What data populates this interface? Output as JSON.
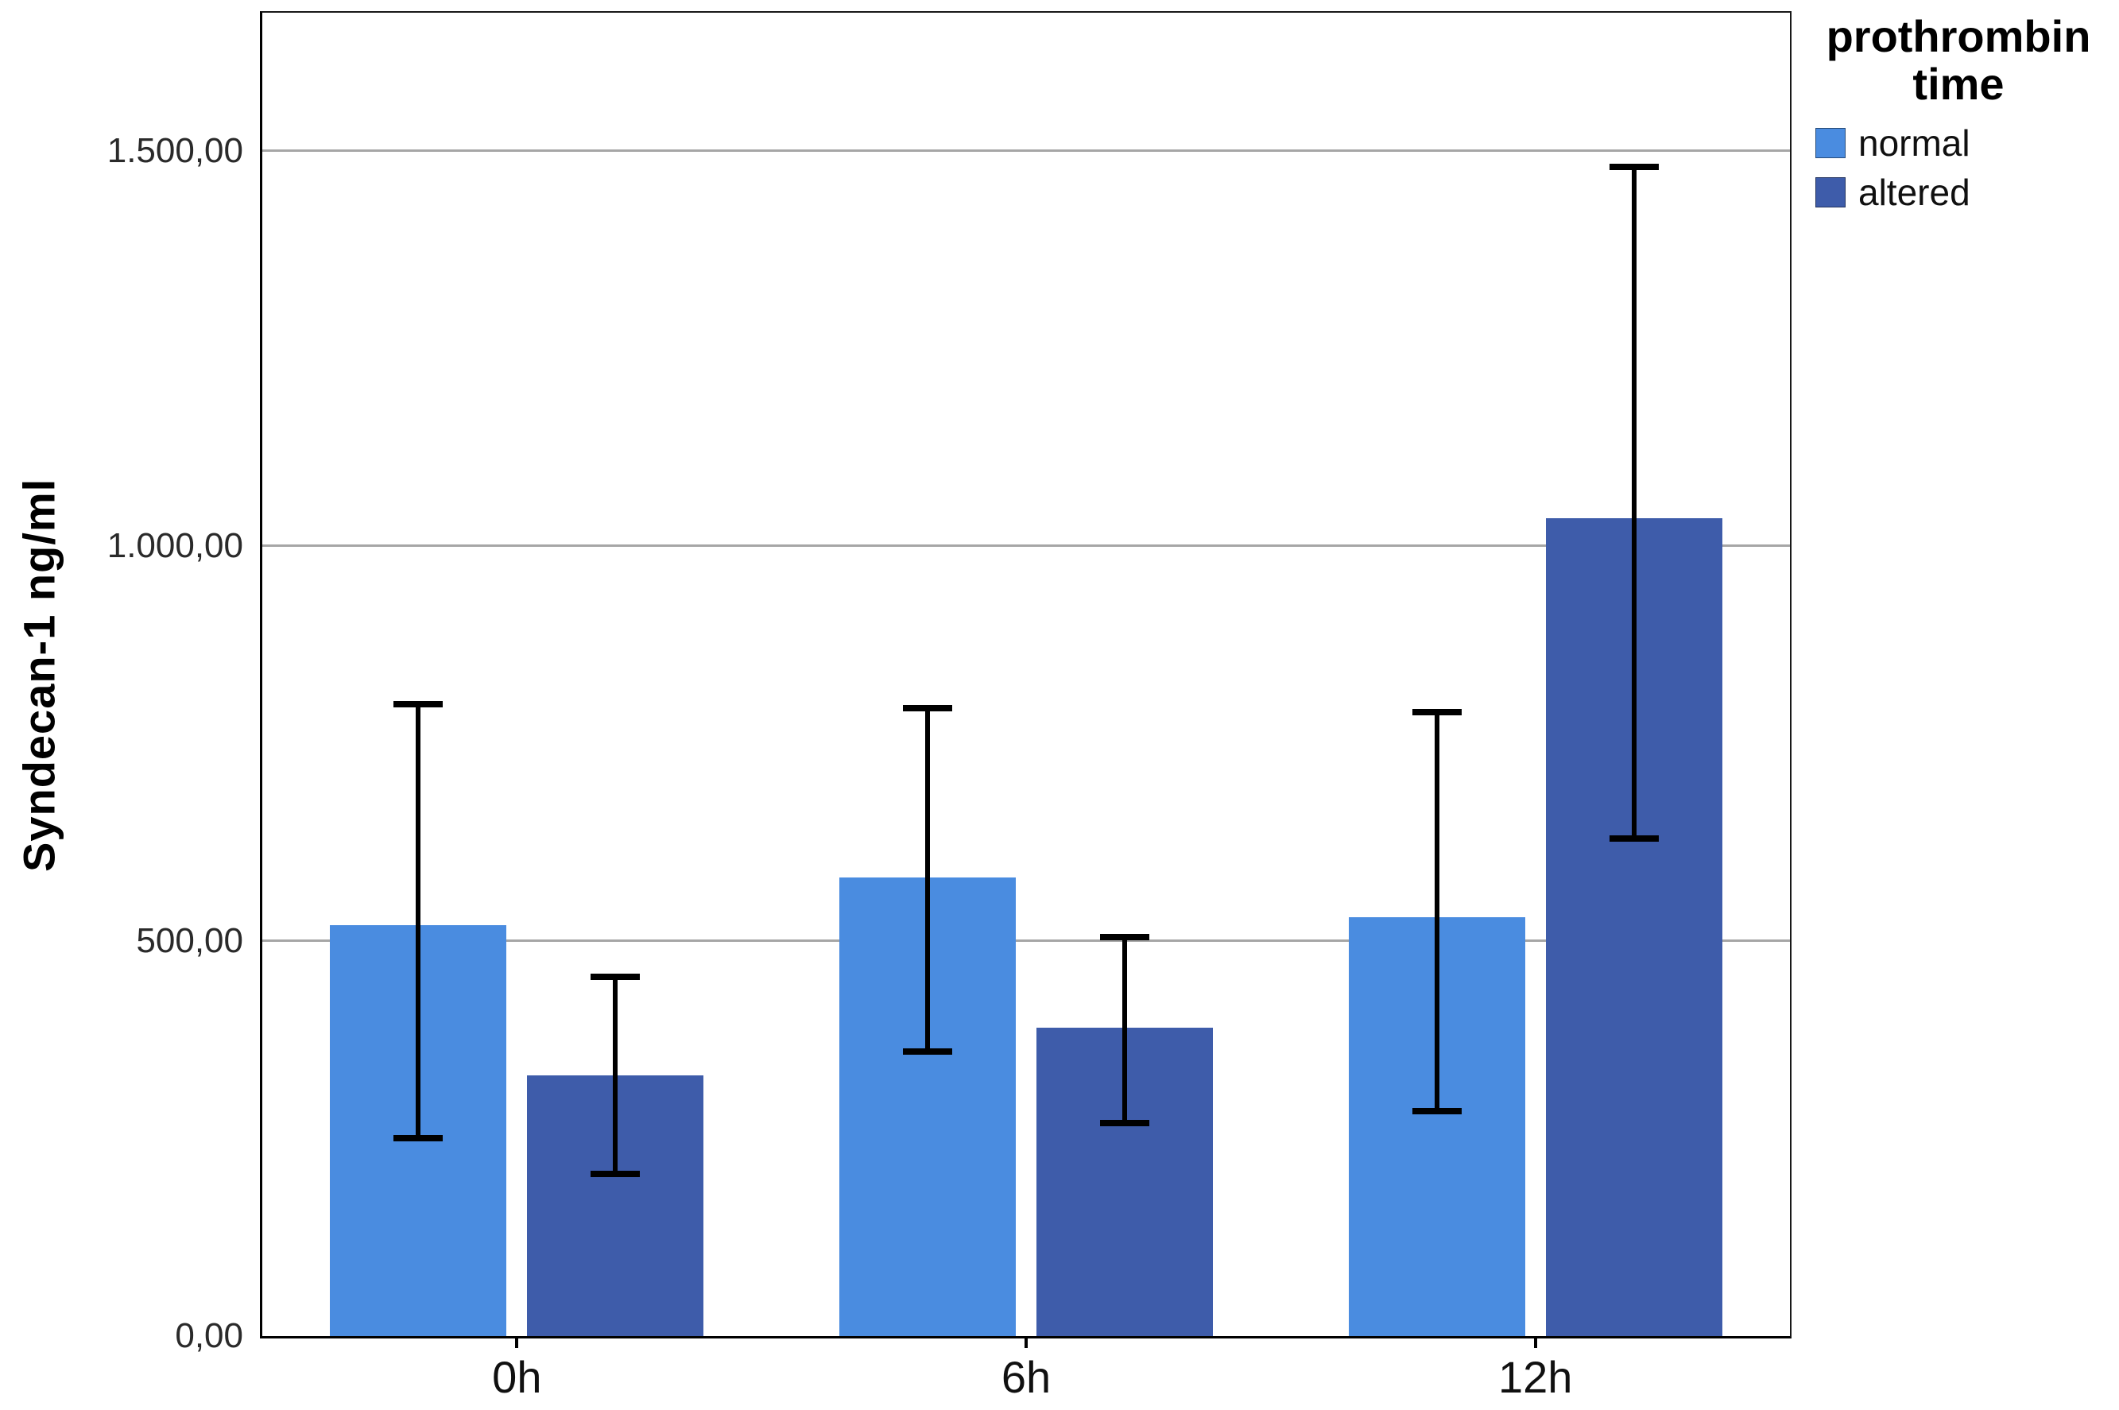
{
  "figure": {
    "y_axis_title": "Syndecan-1 ng/ml"
  },
  "legend": {
    "title_line1": "prothrombin",
    "title_line2": "time",
    "items": [
      {
        "label": "normal",
        "color": "#4a8ce0"
      },
      {
        "label": "altered",
        "color": "#3e5caa"
      }
    ]
  },
  "chart_data": {
    "type": "bar",
    "title": "",
    "xlabel": "",
    "ylabel": "Syndecan-1 ng/ml",
    "categories": [
      "0h",
      "6h",
      "12h"
    ],
    "series": [
      {
        "name": "normal",
        "color": "#4a8ce0",
        "values": [
          520,
          580,
          530
        ],
        "error_low": [
          250,
          360,
          285
        ],
        "error_high": [
          800,
          795,
          790
        ]
      },
      {
        "name": "altered",
        "color": "#3e5caa",
        "values": [
          330,
          390,
          1035
        ],
        "error_low": [
          205,
          270,
          630
        ],
        "error_high": [
          455,
          505,
          1480
        ]
      }
    ],
    "y_ticks": [
      {
        "value": 0,
        "label": "0,00"
      },
      {
        "value": 500,
        "label": "500,00"
      },
      {
        "value": 1000,
        "label": "1.000,00"
      },
      {
        "value": 1500,
        "label": "1.500,00"
      }
    ],
    "ylim": [
      0,
      1675
    ],
    "grid": "horizontal-gray-lines",
    "legend_title": "prothrombin time",
    "legend_position": "top-right-outside"
  }
}
